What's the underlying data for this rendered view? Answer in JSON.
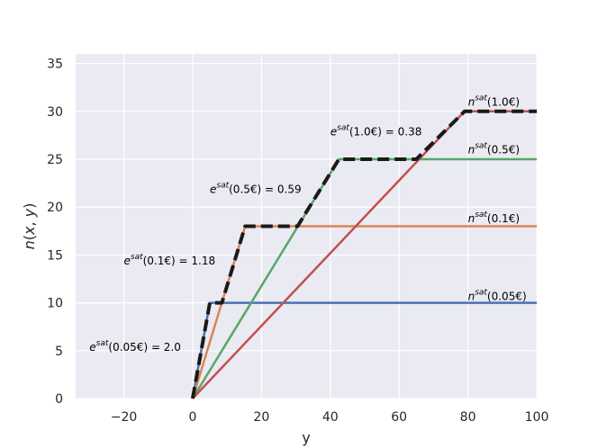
{
  "chart_data": {
    "type": "line",
    "xlabel": "y",
    "ylabel": "n(x, y)",
    "xlim": [
      -34,
      100
    ],
    "ylim": [
      0,
      36
    ],
    "xticks": [
      -20,
      0,
      20,
      40,
      60,
      80,
      100
    ],
    "yticks": [
      0,
      5,
      10,
      15,
      20,
      25,
      30,
      35
    ],
    "xtick_labels": [
      "−20",
      "0",
      "20",
      "40",
      "60",
      "80",
      "100"
    ],
    "ytick_labels": [
      "0",
      "5",
      "10",
      "15",
      "20",
      "25",
      "30",
      "35"
    ],
    "grid": true,
    "background": "#EAEAF2",
    "series": [
      {
        "color": "#4C72B0",
        "x": [
          0,
          5,
          100
        ],
        "y": [
          0,
          10,
          10
        ],
        "style": "solid"
      },
      {
        "color": "#DD8452",
        "x": [
          0,
          15.25,
          100
        ],
        "y": [
          0,
          18,
          18
        ],
        "style": "solid"
      },
      {
        "color": "#55A868",
        "x": [
          0,
          42.5,
          100
        ],
        "y": [
          0,
          25,
          25
        ],
        "style": "solid"
      },
      {
        "color": "#C44E52",
        "x": [
          0,
          79,
          100
        ],
        "y": [
          0,
          30,
          30
        ],
        "style": "solid"
      },
      {
        "color": "#1A1A1A",
        "x": [
          0,
          5,
          8.5,
          15.25,
          30.5,
          42.5,
          65,
          79,
          100
        ],
        "y": [
          0,
          10,
          10,
          18,
          18,
          25,
          25,
          30,
          30
        ],
        "style": "dashed"
      }
    ],
    "annotations": [
      {
        "base": "e",
        "sup": "sat",
        "arg": "(0.05€) = 2.0",
        "x": -30,
        "y": 5
      },
      {
        "base": "e",
        "sup": "sat",
        "arg": "(0.1€) = 1.18",
        "x": -20,
        "y": 14
      },
      {
        "base": "e",
        "sup": "sat",
        "arg": "(0.5€) = 0.59",
        "x": 5,
        "y": 21.5
      },
      {
        "base": "e",
        "sup": "sat",
        "arg": "(1.0€) = 0.38",
        "x": 40,
        "y": 27.5
      },
      {
        "base": "n",
        "sup": "sat",
        "arg": "(0.05€)",
        "x": 80,
        "y": 10.3
      },
      {
        "base": "n",
        "sup": "sat",
        "arg": "(0.1€)",
        "x": 80,
        "y": 18.4
      },
      {
        "base": "n",
        "sup": "sat",
        "arg": "(0.5€)",
        "x": 80,
        "y": 25.6
      },
      {
        "base": "n",
        "sup": "sat",
        "arg": "(1.0€)",
        "x": 80,
        "y": 30.6
      }
    ]
  }
}
